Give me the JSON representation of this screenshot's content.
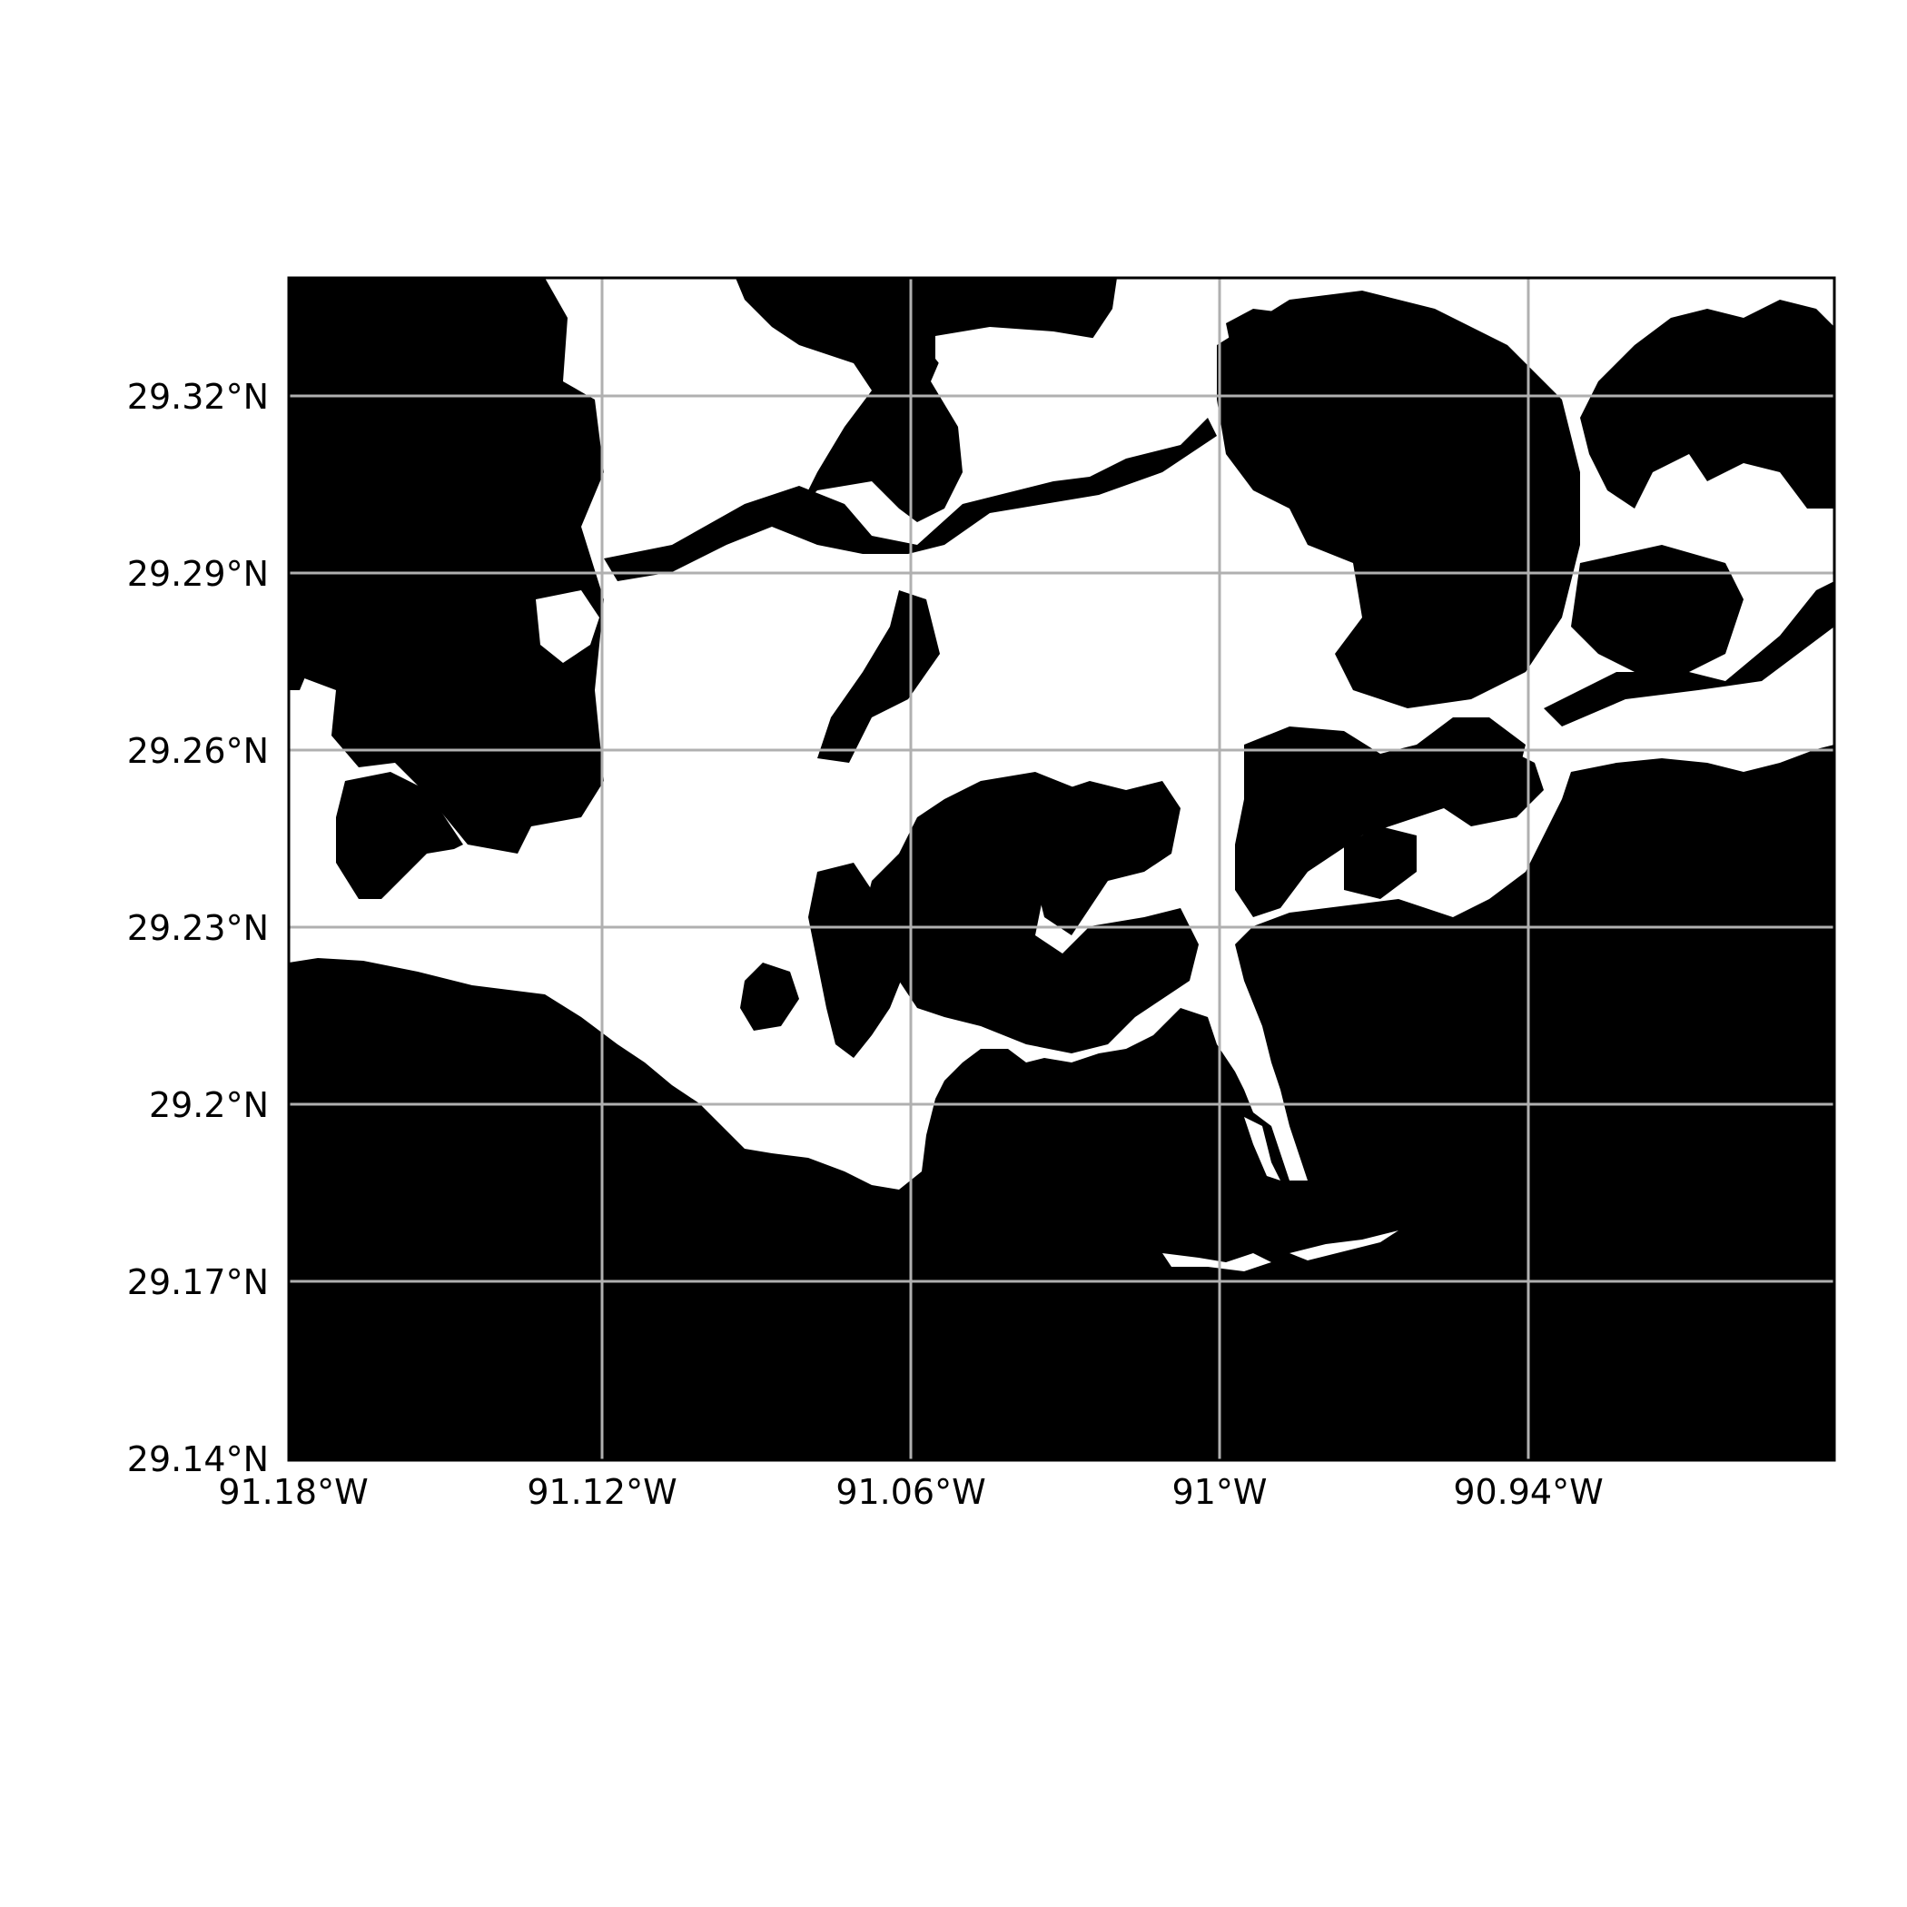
{
  "map": {
    "lon_ticks": [
      {
        "value": -91.18,
        "label": "91.18°W"
      },
      {
        "value": -91.12,
        "label": "91.12°W"
      },
      {
        "value": -91.06,
        "label": "91.06°W"
      },
      {
        "value": -91.0,
        "label": "91°W"
      },
      {
        "value": -90.94,
        "label": "90.94°W"
      }
    ],
    "lat_ticks": [
      {
        "value": 29.32,
        "label": "29.32°N"
      },
      {
        "value": 29.29,
        "label": "29.29°N"
      },
      {
        "value": 29.26,
        "label": "29.26°N"
      },
      {
        "value": 29.23,
        "label": "29.23°N"
      },
      {
        "value": 29.2,
        "label": "29.2°N"
      },
      {
        "value": 29.17,
        "label": "29.17°N"
      },
      {
        "value": 29.14,
        "label": "29.14°N"
      }
    ],
    "colors": {
      "water": "#000000",
      "land": "#ffffff",
      "grid": "#b0b0b0",
      "frame": "#000000"
    },
    "grid": true
  }
}
